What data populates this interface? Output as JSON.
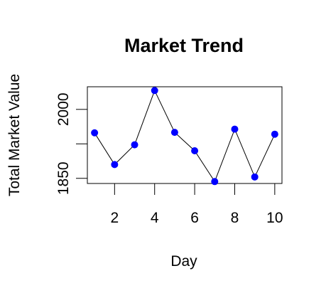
{
  "chart_data": {
    "type": "line",
    "title": "Market Trend",
    "xlabel": "Day",
    "ylabel": "Total Market Value",
    "x": [
      1,
      2,
      3,
      4,
      5,
      6,
      7,
      8,
      9,
      10
    ],
    "series": [
      {
        "name": "Total Market Value",
        "values": [
          1949,
          1880,
          1923,
          2041,
          1950,
          1910,
          1843,
          1957,
          1853,
          1946
        ]
      }
    ],
    "xlim": [
      0.64,
      10.36
    ],
    "ylim": [
      1838.8,
      2049.2
    ],
    "x_ticks": [
      2,
      4,
      6,
      8,
      10
    ],
    "x_tick_labels": [
      "2",
      "4",
      "6",
      "8",
      "10"
    ],
    "y_ticks": [
      1850,
      1925,
      2000
    ],
    "y_tick_labels": [
      "1850",
      "",
      "2000"
    ],
    "grid": false,
    "legend": "none",
    "marker_color": "#0000ff",
    "line_color": "#000000"
  }
}
